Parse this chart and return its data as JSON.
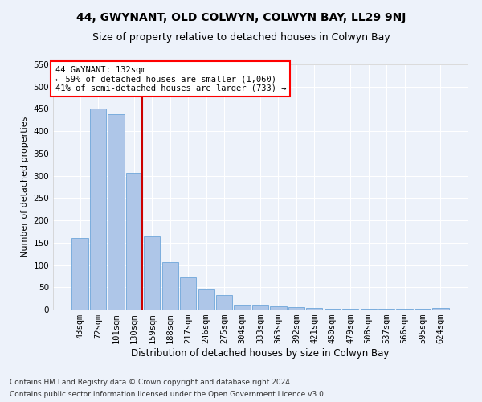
{
  "title": "44, GWYNANT, OLD COLWYN, COLWYN BAY, LL29 9NJ",
  "subtitle": "Size of property relative to detached houses in Colwyn Bay",
  "xlabel": "Distribution of detached houses by size in Colwyn Bay",
  "ylabel": "Number of detached properties",
  "categories": [
    "43sqm",
    "72sqm",
    "101sqm",
    "130sqm",
    "159sqm",
    "188sqm",
    "217sqm",
    "246sqm",
    "275sqm",
    "304sqm",
    "333sqm",
    "363sqm",
    "392sqm",
    "421sqm",
    "450sqm",
    "479sqm",
    "508sqm",
    "537sqm",
    "566sqm",
    "595sqm",
    "624sqm"
  ],
  "values": [
    160,
    450,
    438,
    307,
    165,
    107,
    73,
    45,
    32,
    10,
    10,
    8,
    5,
    3,
    2,
    2,
    2,
    1,
    1,
    1,
    4
  ],
  "bar_color": "#aec6e8",
  "bar_edge_color": "#5b9bd5",
  "red_line_index": 3,
  "annotation_text": "44 GWYNANT: 132sqm\n← 59% of detached houses are smaller (1,060)\n41% of semi-detached houses are larger (733) →",
  "annotation_box_color": "white",
  "annotation_box_edge_color": "red",
  "red_line_color": "#cc0000",
  "ylim": [
    0,
    550
  ],
  "yticks": [
    0,
    50,
    100,
    150,
    200,
    250,
    300,
    350,
    400,
    450,
    500,
    550
  ],
  "footer_line1": "Contains HM Land Registry data © Crown copyright and database right 2024.",
  "footer_line2": "Contains public sector information licensed under the Open Government Licence v3.0.",
  "background_color": "#edf2fa",
  "grid_color": "white",
  "title_fontsize": 10,
  "subtitle_fontsize": 9,
  "xlabel_fontsize": 8.5,
  "ylabel_fontsize": 8,
  "tick_fontsize": 7.5,
  "annotation_fontsize": 7.5,
  "footer_fontsize": 6.5
}
